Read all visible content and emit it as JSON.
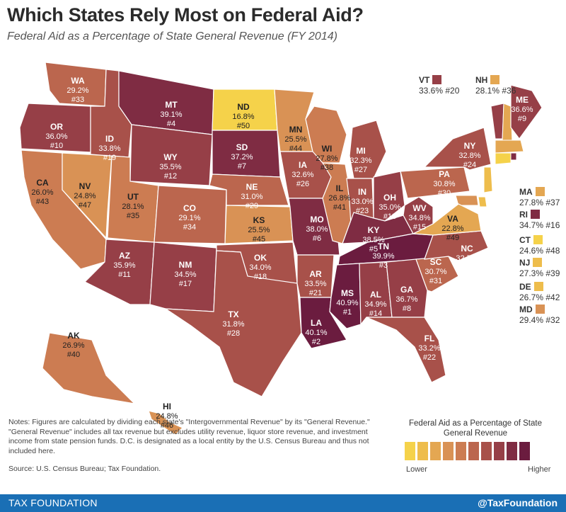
{
  "title": "Which States Rely Most on Federal Aid?",
  "subtitle": "Federal Aid as a Percentage of State General Revenue (FY 2014)",
  "colors": {
    "scale": [
      "#f5d24a",
      "#eebd4c",
      "#e4a752",
      "#d99255",
      "#cc7c52",
      "#bb664e",
      "#a8514a",
      "#963f47",
      "#7f2c43",
      "#6b1c3f"
    ],
    "footer": "#1a6fb5"
  },
  "states": [
    {
      "abbr": "WA",
      "value": "29.2%",
      "rank": "#33"
    },
    {
      "abbr": "OR",
      "value": "36.0%",
      "rank": "#10"
    },
    {
      "abbr": "CA",
      "value": "26.0%",
      "rank": "#43"
    },
    {
      "abbr": "NV",
      "value": "24.8%",
      "rank": "#47"
    },
    {
      "abbr": "ID",
      "value": "33.8%",
      "rank": "#19"
    },
    {
      "abbr": "MT",
      "value": "39.1%",
      "rank": "#4"
    },
    {
      "abbr": "WY",
      "value": "35.5%",
      "rank": "#12"
    },
    {
      "abbr": "UT",
      "value": "28.1%",
      "rank": "#35"
    },
    {
      "abbr": "CO",
      "value": "29.1%",
      "rank": "#34"
    },
    {
      "abbr": "AZ",
      "value": "35.9%",
      "rank": "#11"
    },
    {
      "abbr": "NM",
      "value": "34.5%",
      "rank": "#17"
    },
    {
      "abbr": "ND",
      "value": "16.8%",
      "rank": "#50"
    },
    {
      "abbr": "SD",
      "value": "37.2%",
      "rank": "#7"
    },
    {
      "abbr": "NE",
      "value": "31.0%",
      "rank": "#29"
    },
    {
      "abbr": "KS",
      "value": "25.5%",
      "rank": "#45"
    },
    {
      "abbr": "OK",
      "value": "34.0%",
      "rank": "#18"
    },
    {
      "abbr": "TX",
      "value": "31.8%",
      "rank": "#28"
    },
    {
      "abbr": "MN",
      "value": "25.5%",
      "rank": "#44"
    },
    {
      "abbr": "IA",
      "value": "32.6%",
      "rank": "#26"
    },
    {
      "abbr": "MO",
      "value": "38.0%",
      "rank": "#6"
    },
    {
      "abbr": "AR",
      "value": "33.5%",
      "rank": "#21"
    },
    {
      "abbr": "LA",
      "value": "40.1%",
      "rank": "#2"
    },
    {
      "abbr": "WI",
      "value": "27.8%",
      "rank": "#38"
    },
    {
      "abbr": "IL",
      "value": "26.8%",
      "rank": "#41"
    },
    {
      "abbr": "MI",
      "value": "32.3%",
      "rank": "#27"
    },
    {
      "abbr": "IN",
      "value": "33.0%",
      "rank": "#23"
    },
    {
      "abbr": "OH",
      "value": "35.0%",
      "rank": "#13"
    },
    {
      "abbr": "KY",
      "value": "38.5%",
      "rank": "#5"
    },
    {
      "abbr": "TN",
      "value": "39.9%",
      "rank": "#3"
    },
    {
      "abbr": "MS",
      "value": "40.9%",
      "rank": "#1"
    },
    {
      "abbr": "AL",
      "value": "34.9%",
      "rank": "#14"
    },
    {
      "abbr": "GA",
      "value": "36.7%",
      "rank": "#8"
    },
    {
      "abbr": "FL",
      "value": "33.2%",
      "rank": "#22"
    },
    {
      "abbr": "SC",
      "value": "30.7%",
      "rank": "#31"
    },
    {
      "abbr": "NC",
      "value": "32.7%",
      "rank": "#25"
    },
    {
      "abbr": "VA",
      "value": "22.8%",
      "rank": "#49"
    },
    {
      "abbr": "WV",
      "value": "34.8%",
      "rank": "#15"
    },
    {
      "abbr": "PA",
      "value": "30.8%",
      "rank": "#30"
    },
    {
      "abbr": "NY",
      "value": "32.8%",
      "rank": "#24"
    },
    {
      "abbr": "ME",
      "value": "36.6%",
      "rank": "#9"
    },
    {
      "abbr": "AK",
      "value": "26.9%",
      "rank": "#40"
    },
    {
      "abbr": "HI",
      "value": "24.8%",
      "rank": "#46"
    }
  ],
  "callouts": [
    {
      "abbr": "VT",
      "text": "33.6% #20"
    },
    {
      "abbr": "NH",
      "text": "28.1% #36"
    },
    {
      "abbr": "MA",
      "text": "27.8% #37"
    },
    {
      "abbr": "RI",
      "text": "34.7% #16"
    },
    {
      "abbr": "CT",
      "text": "24.6% #48"
    },
    {
      "abbr": "NJ",
      "text": "27.3% #39"
    },
    {
      "abbr": "DE",
      "text": "26.7% #42"
    },
    {
      "abbr": "MD",
      "text": "29.4% #32"
    }
  ],
  "notes": "Notes: Figures are calculated by dividing each state's \"Intergovernmental Revenue\" by its \"General Revenue.\" \"General Revenue\" includes all tax revenue but excludes utility revenue, liquor store revenue, and investment income from state pension funds. D.C. is designated as a local entity by the U.S. Census Bureau and thus not included here.",
  "source": "Source: U.S. Census Bureau; Tax Foundation.",
  "legend": {
    "title": "Federal Aid as a Percentage of State General Revenue",
    "low": "Lower",
    "high": "Higher"
  },
  "footer": {
    "left": "TAX FOUNDATION",
    "right": "@TaxFoundation"
  }
}
